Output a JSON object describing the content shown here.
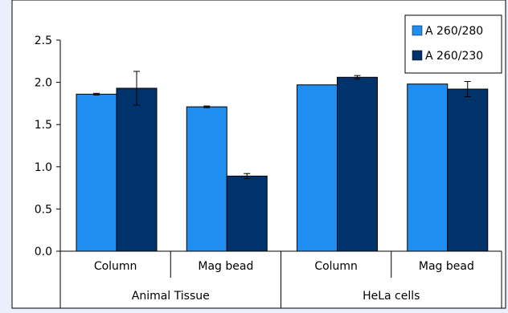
{
  "chart_data": {
    "type": "bar",
    "title": "",
    "xlabel": "",
    "ylabel": "",
    "ylim": [
      0,
      2.5
    ],
    "yticks": [
      "0.0",
      "0.5",
      "1.0",
      "1.5",
      "2.0",
      "2.5"
    ],
    "categories": [
      "Column",
      "Mag bead",
      "Column",
      "Mag bead"
    ],
    "groups": [
      {
        "label": "Animal Tissue",
        "span": [
          0,
          1
        ]
      },
      {
        "label": "HeLa cells",
        "span": [
          2,
          3
        ]
      }
    ],
    "series": [
      {
        "name": "A 260/280",
        "values": [
          1.86,
          1.71,
          1.97,
          1.98
        ],
        "errors": [
          0.01,
          0.01,
          0.0,
          0.0
        ],
        "color": "#1f8ef0"
      },
      {
        "name": "A 260/230",
        "values": [
          1.93,
          0.89,
          2.06,
          1.92
        ],
        "errors": [
          0.2,
          0.03,
          0.02,
          0.09
        ],
        "color": "#00336b"
      }
    ],
    "grid": false,
    "legend": "top-right"
  }
}
